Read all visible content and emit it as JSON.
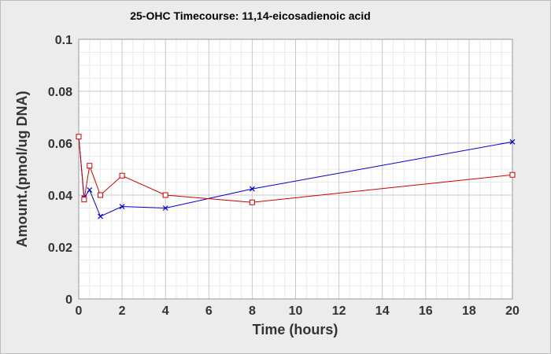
{
  "chart_data": {
    "type": "line",
    "title": "25-OHC Timecourse: 11,14-eicosadienoic acid",
    "xlabel": "Time (hours)",
    "ylabel": "Amount.(pmol/ug DNA)",
    "xlim": [
      0,
      20
    ],
    "ylim": [
      0,
      0.1
    ],
    "xticks": [
      "0",
      "2",
      "4",
      "6",
      "8",
      "10",
      "12",
      "14",
      "16",
      "18",
      "20"
    ],
    "yticks": [
      "0",
      "0.02",
      "0.04",
      "0.06",
      "0.08",
      "0.1"
    ],
    "grid": true,
    "legend": "none",
    "series": [
      {
        "color": "#0000cc",
        "marker": "x",
        "x": [
          0,
          0.25,
          0.5,
          1,
          2,
          4,
          8,
          20
        ],
        "y": [
          0.0625,
          0.039,
          0.042,
          0.0318,
          0.0356,
          0.035,
          0.0424,
          0.0605
        ]
      },
      {
        "color": "#cc0000",
        "marker": "square",
        "x": [
          0,
          0.25,
          0.5,
          1,
          2,
          4,
          8,
          20
        ],
        "y": [
          0.0625,
          0.0383,
          0.0513,
          0.04,
          0.0475,
          0.04,
          0.0372,
          0.0478
        ]
      }
    ]
  }
}
